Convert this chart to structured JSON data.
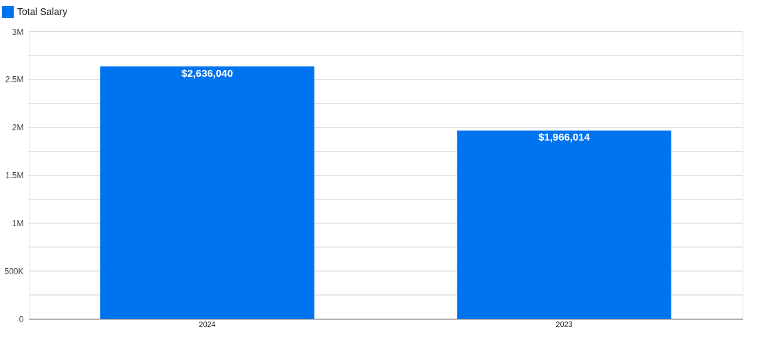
{
  "chart_data": {
    "type": "bar",
    "categories": [
      "2024",
      "2023"
    ],
    "series": [
      {
        "name": "Total Salary",
        "color": "#0073ee",
        "values": [
          2636040,
          1966014
        ],
        "value_labels": [
          "$2,636,040",
          "$1,966,014"
        ]
      }
    ],
    "ylim": [
      0,
      3000000
    ],
    "yticks": [
      {
        "value": 0,
        "label": "0"
      },
      {
        "value": 250000,
        "label": null
      },
      {
        "value": 500000,
        "label": "500K"
      },
      {
        "value": 750000,
        "label": null
      },
      {
        "value": 1000000,
        "label": "1M"
      },
      {
        "value": 1250000,
        "label": null
      },
      {
        "value": 1500000,
        "label": "1.5M"
      },
      {
        "value": 1750000,
        "label": null
      },
      {
        "value": 2000000,
        "label": "2M"
      },
      {
        "value": 2250000,
        "label": null
      },
      {
        "value": 2500000,
        "label": "2.5M"
      },
      {
        "value": 2750000,
        "label": null
      },
      {
        "value": 3000000,
        "label": "3M"
      }
    ],
    "grid": "y",
    "legend": "top left"
  }
}
